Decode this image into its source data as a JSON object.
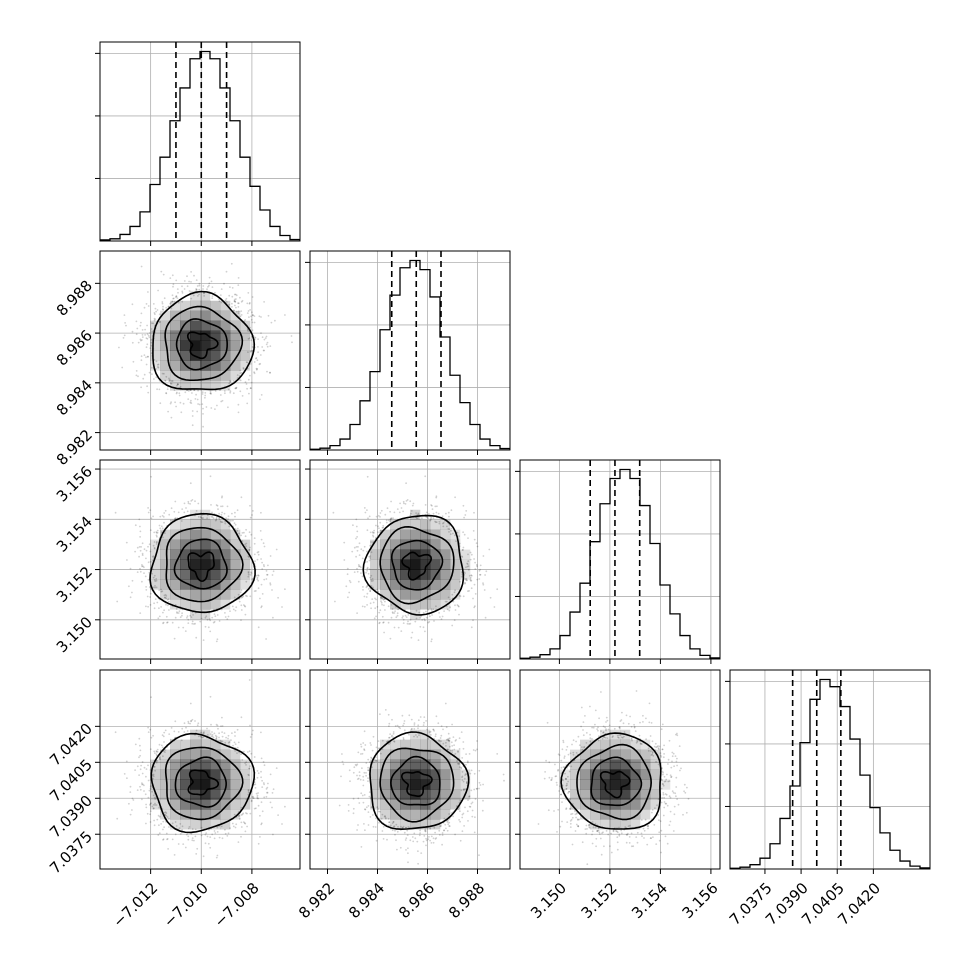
{
  "chart_data": {
    "type": "corner",
    "parameters": [
      {
        "ticks": [
          -7.012,
          -7.01,
          -7.008
        ],
        "tick_labels": [
          "−7.012",
          "−7.010",
          "−7.008"
        ],
        "range": [
          -7.014,
          -7.0061
        ],
        "median": -7.01,
        "quantiles": [
          -7.011,
          -7.01,
          -7.009
        ],
        "sigma": 0.001
      },
      {
        "ticks": [
          8.982,
          8.984,
          8.986,
          8.988
        ],
        "tick_labels": [
          "8.982",
          "8.984",
          "8.986",
          "8.988"
        ],
        "range": [
          8.9813,
          8.9893
        ],
        "median": 8.98555,
        "quantiles": [
          8.98457,
          8.98555,
          8.98654
        ],
        "sigma": 0.00098
      },
      {
        "ticks": [
          3.15,
          3.152,
          3.154,
          3.156
        ],
        "tick_labels": [
          "3.150",
          "3.152",
          "3.154",
          "3.156"
        ],
        "range": [
          3.14844,
          3.15636
        ],
        "median": 3.1522,
        "quantiles": [
          3.15122,
          3.1522,
          3.15318
        ],
        "sigma": 0.00098
      },
      {
        "ticks": [
          7.0375,
          7.039,
          7.0405,
          7.042
        ],
        "tick_labels": [
          "7.0375",
          "7.0390",
          "7.0405",
          "7.0420"
        ],
        "range": [
          7.03605,
          7.04435
        ],
        "median": 7.03965,
        "quantiles": [
          7.03865,
          7.03965,
          7.04065
        ],
        "sigma": 0.001
      }
    ],
    "histograms": [
      {
        "bins": 20,
        "counts": [
          3,
          6,
          18,
          40,
          80,
          155,
          230,
          330,
          420,
          500,
          520,
          500,
          420,
          330,
          230,
          150,
          85,
          40,
          15,
          4
        ]
      },
      {
        "bins": 20,
        "counts": [
          2,
          5,
          12,
          30,
          70,
          135,
          215,
          330,
          425,
          500,
          520,
          495,
          420,
          310,
          205,
          130,
          70,
          30,
          12,
          4
        ]
      },
      {
        "bins": 20,
        "counts": [
          2,
          5,
          12,
          28,
          65,
          130,
          210,
          325,
          430,
          500,
          525,
          500,
          425,
          320,
          205,
          125,
          65,
          28,
          10,
          3
        ]
      },
      {
        "bins": 20,
        "counts": [
          2,
          5,
          12,
          30,
          70,
          140,
          230,
          350,
          470,
          525,
          505,
          450,
          360,
          260,
          170,
          100,
          52,
          22,
          8,
          3
        ]
      }
    ],
    "scatter_points_per_panel": 2500,
    "contour_levels_sigma": [
      0.5,
      1.0,
      1.5,
      2.0
    ],
    "grid": true,
    "quantile_lines": "dashed"
  }
}
